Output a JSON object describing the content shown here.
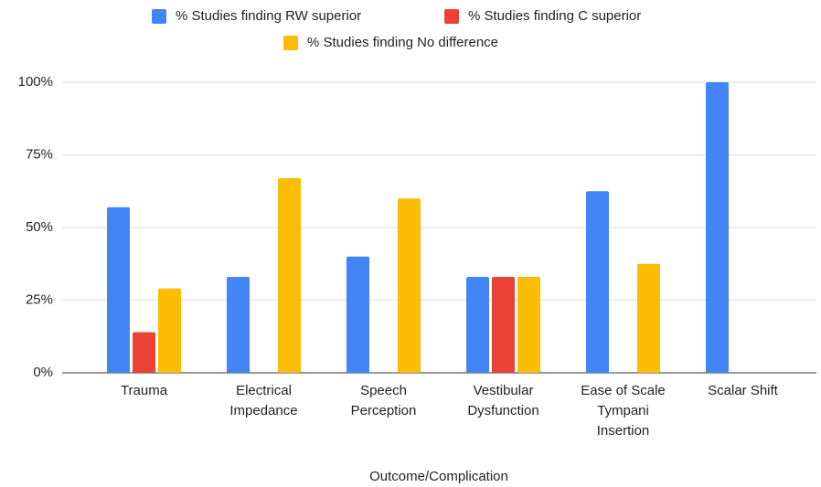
{
  "chart_data": {
    "type": "bar",
    "x_label": "Outcome/Complication",
    "categories": [
      "Trauma",
      "Electrical Impedance",
      "Speech Perception",
      "Vestibular Dysfunction",
      "Ease of Scale Tympani Insertion",
      "Scalar Shift"
    ],
    "series": [
      {
        "name": "% Studies finding RW superior",
        "color": "#4285f4",
        "values": [
          57,
          33,
          40,
          33,
          62.5,
          100
        ]
      },
      {
        "name": "% Studies finding C superior",
        "color": "#ea4335",
        "values": [
          14,
          0,
          0,
          33,
          0,
          0
        ]
      },
      {
        "name": "% Studies finding No difference",
        "color": "#fbbc04",
        "values": [
          29,
          67,
          60,
          33,
          37.5,
          0
        ]
      }
    ],
    "ylim": [
      0,
      100
    ],
    "yticks": [
      {
        "value": 0,
        "label": "0%"
      },
      {
        "value": 25,
        "label": "25%"
      },
      {
        "value": 50,
        "label": "50%"
      },
      {
        "value": 75,
        "label": "75%"
      },
      {
        "value": 100,
        "label": "100%"
      }
    ],
    "grid": true
  }
}
